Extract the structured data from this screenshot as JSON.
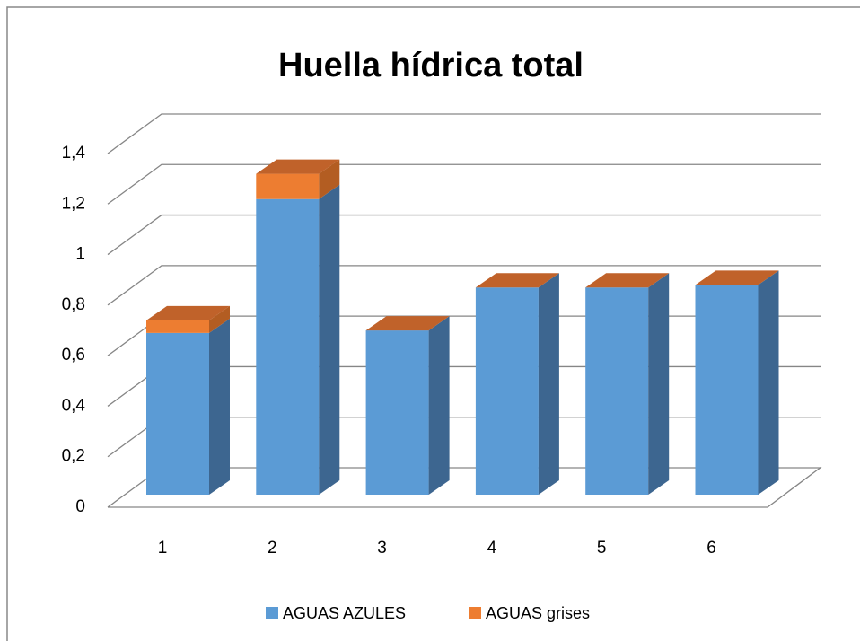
{
  "chart_data": {
    "type": "bar3d_stacked",
    "title": "Huella hídrica total",
    "categories": [
      "1",
      "2",
      "3",
      "4",
      "5",
      "6"
    ],
    "series": [
      {
        "name": "AGUAS AZULES",
        "color": "#5b9bd5",
        "values": [
          0.64,
          1.17,
          0.65,
          0.82,
          0.82,
          0.83
        ]
      },
      {
        "name": "AGUAS grises",
        "color": "#ed7d31",
        "values": [
          0.05,
          0.1,
          0,
          0,
          0,
          0
        ]
      }
    ],
    "ylim": [
      0,
      1.4
    ],
    "yticks": [
      0,
      {
        "value": 0.2,
        "label": "0,2"
      },
      {
        "value": 0.4,
        "label": "0,4"
      },
      {
        "value": 0.6,
        "label": "0,6"
      },
      {
        "value": 0.8,
        "label": "0,8"
      },
      1,
      {
        "value": 1.2,
        "label": "1,2"
      },
      {
        "value": 1.4,
        "label": "1,4"
      }
    ],
    "grid": true,
    "legend": "bottom"
  }
}
